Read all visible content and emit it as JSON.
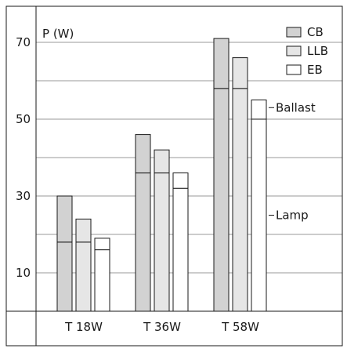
{
  "chart_data": {
    "type": "bar",
    "stacked": true,
    "ylabel": "P (W)",
    "ylim": [
      -10,
      80
    ],
    "yticks": [
      10,
      30,
      50,
      70
    ],
    "gridlines": [
      0,
      10,
      20,
      30,
      40,
      50,
      60,
      70
    ],
    "grid": true,
    "legend_position": "top-right",
    "categories": [
      "T 18W",
      "T 36W",
      "T 58W"
    ],
    "components": [
      "Lamp",
      "Ballast"
    ],
    "component_labels": {
      "Ballast": "Ballast",
      "Lamp": "Lamp"
    },
    "series": [
      {
        "name": "CB",
        "color": "#d2d2d2",
        "lamp": [
          18,
          36,
          58
        ],
        "total": [
          30,
          46,
          71
        ]
      },
      {
        "name": "LLB",
        "color": "#e6e6e6",
        "lamp": [
          18,
          36,
          58
        ],
        "total": [
          24,
          42,
          66
        ]
      },
      {
        "name": "EB",
        "color": "#ffffff",
        "lamp": [
          16,
          32,
          50
        ],
        "total": [
          19,
          36,
          55
        ]
      }
    ]
  }
}
